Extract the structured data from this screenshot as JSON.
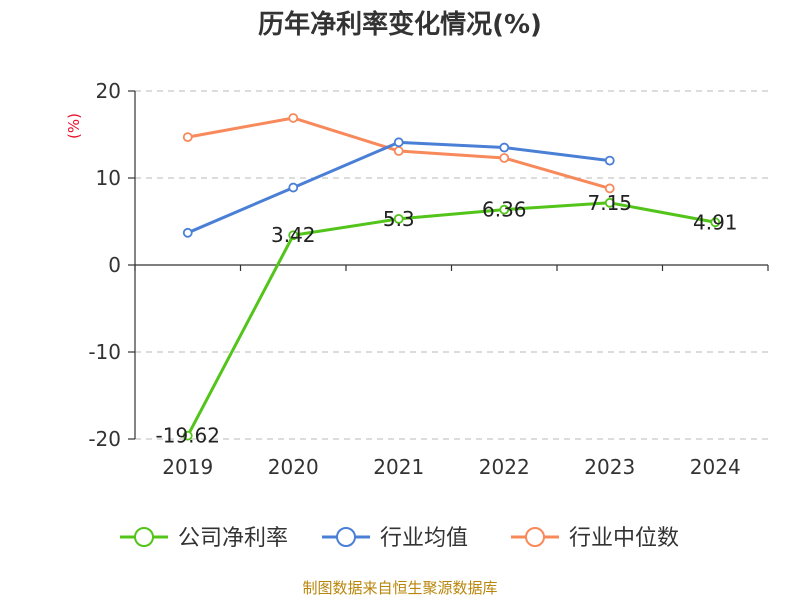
{
  "chart_data": {
    "type": "line",
    "title": "历年净利率变化情况(%)",
    "ylabel": "(%)",
    "categories": [
      "2019",
      "2020",
      "2021",
      "2022",
      "2023",
      "2024"
    ],
    "ylim": [
      -20,
      20
    ],
    "yticks": [
      20,
      10,
      0,
      -10,
      -20
    ],
    "grid": true,
    "legend_position": "bottom",
    "series": [
      {
        "name": "公司净利率",
        "color": "#52c41a",
        "values": [
          -19.62,
          3.42,
          5.3,
          6.36,
          7.15,
          4.91
        ],
        "labels": [
          "-19.62",
          "3.42",
          "5.3",
          "6.36",
          "7.15",
          "4.91"
        ]
      },
      {
        "name": "行业均值",
        "color": "#4a7fd6",
        "values": [
          3.7,
          8.9,
          14.1,
          13.5,
          12.0,
          null
        ]
      },
      {
        "name": "行业中位数",
        "color": "#f7895b",
        "values": [
          14.7,
          16.9,
          13.1,
          12.3,
          8.8,
          null
        ]
      }
    ]
  },
  "source_text": "制图数据来自恒生聚源数据库"
}
